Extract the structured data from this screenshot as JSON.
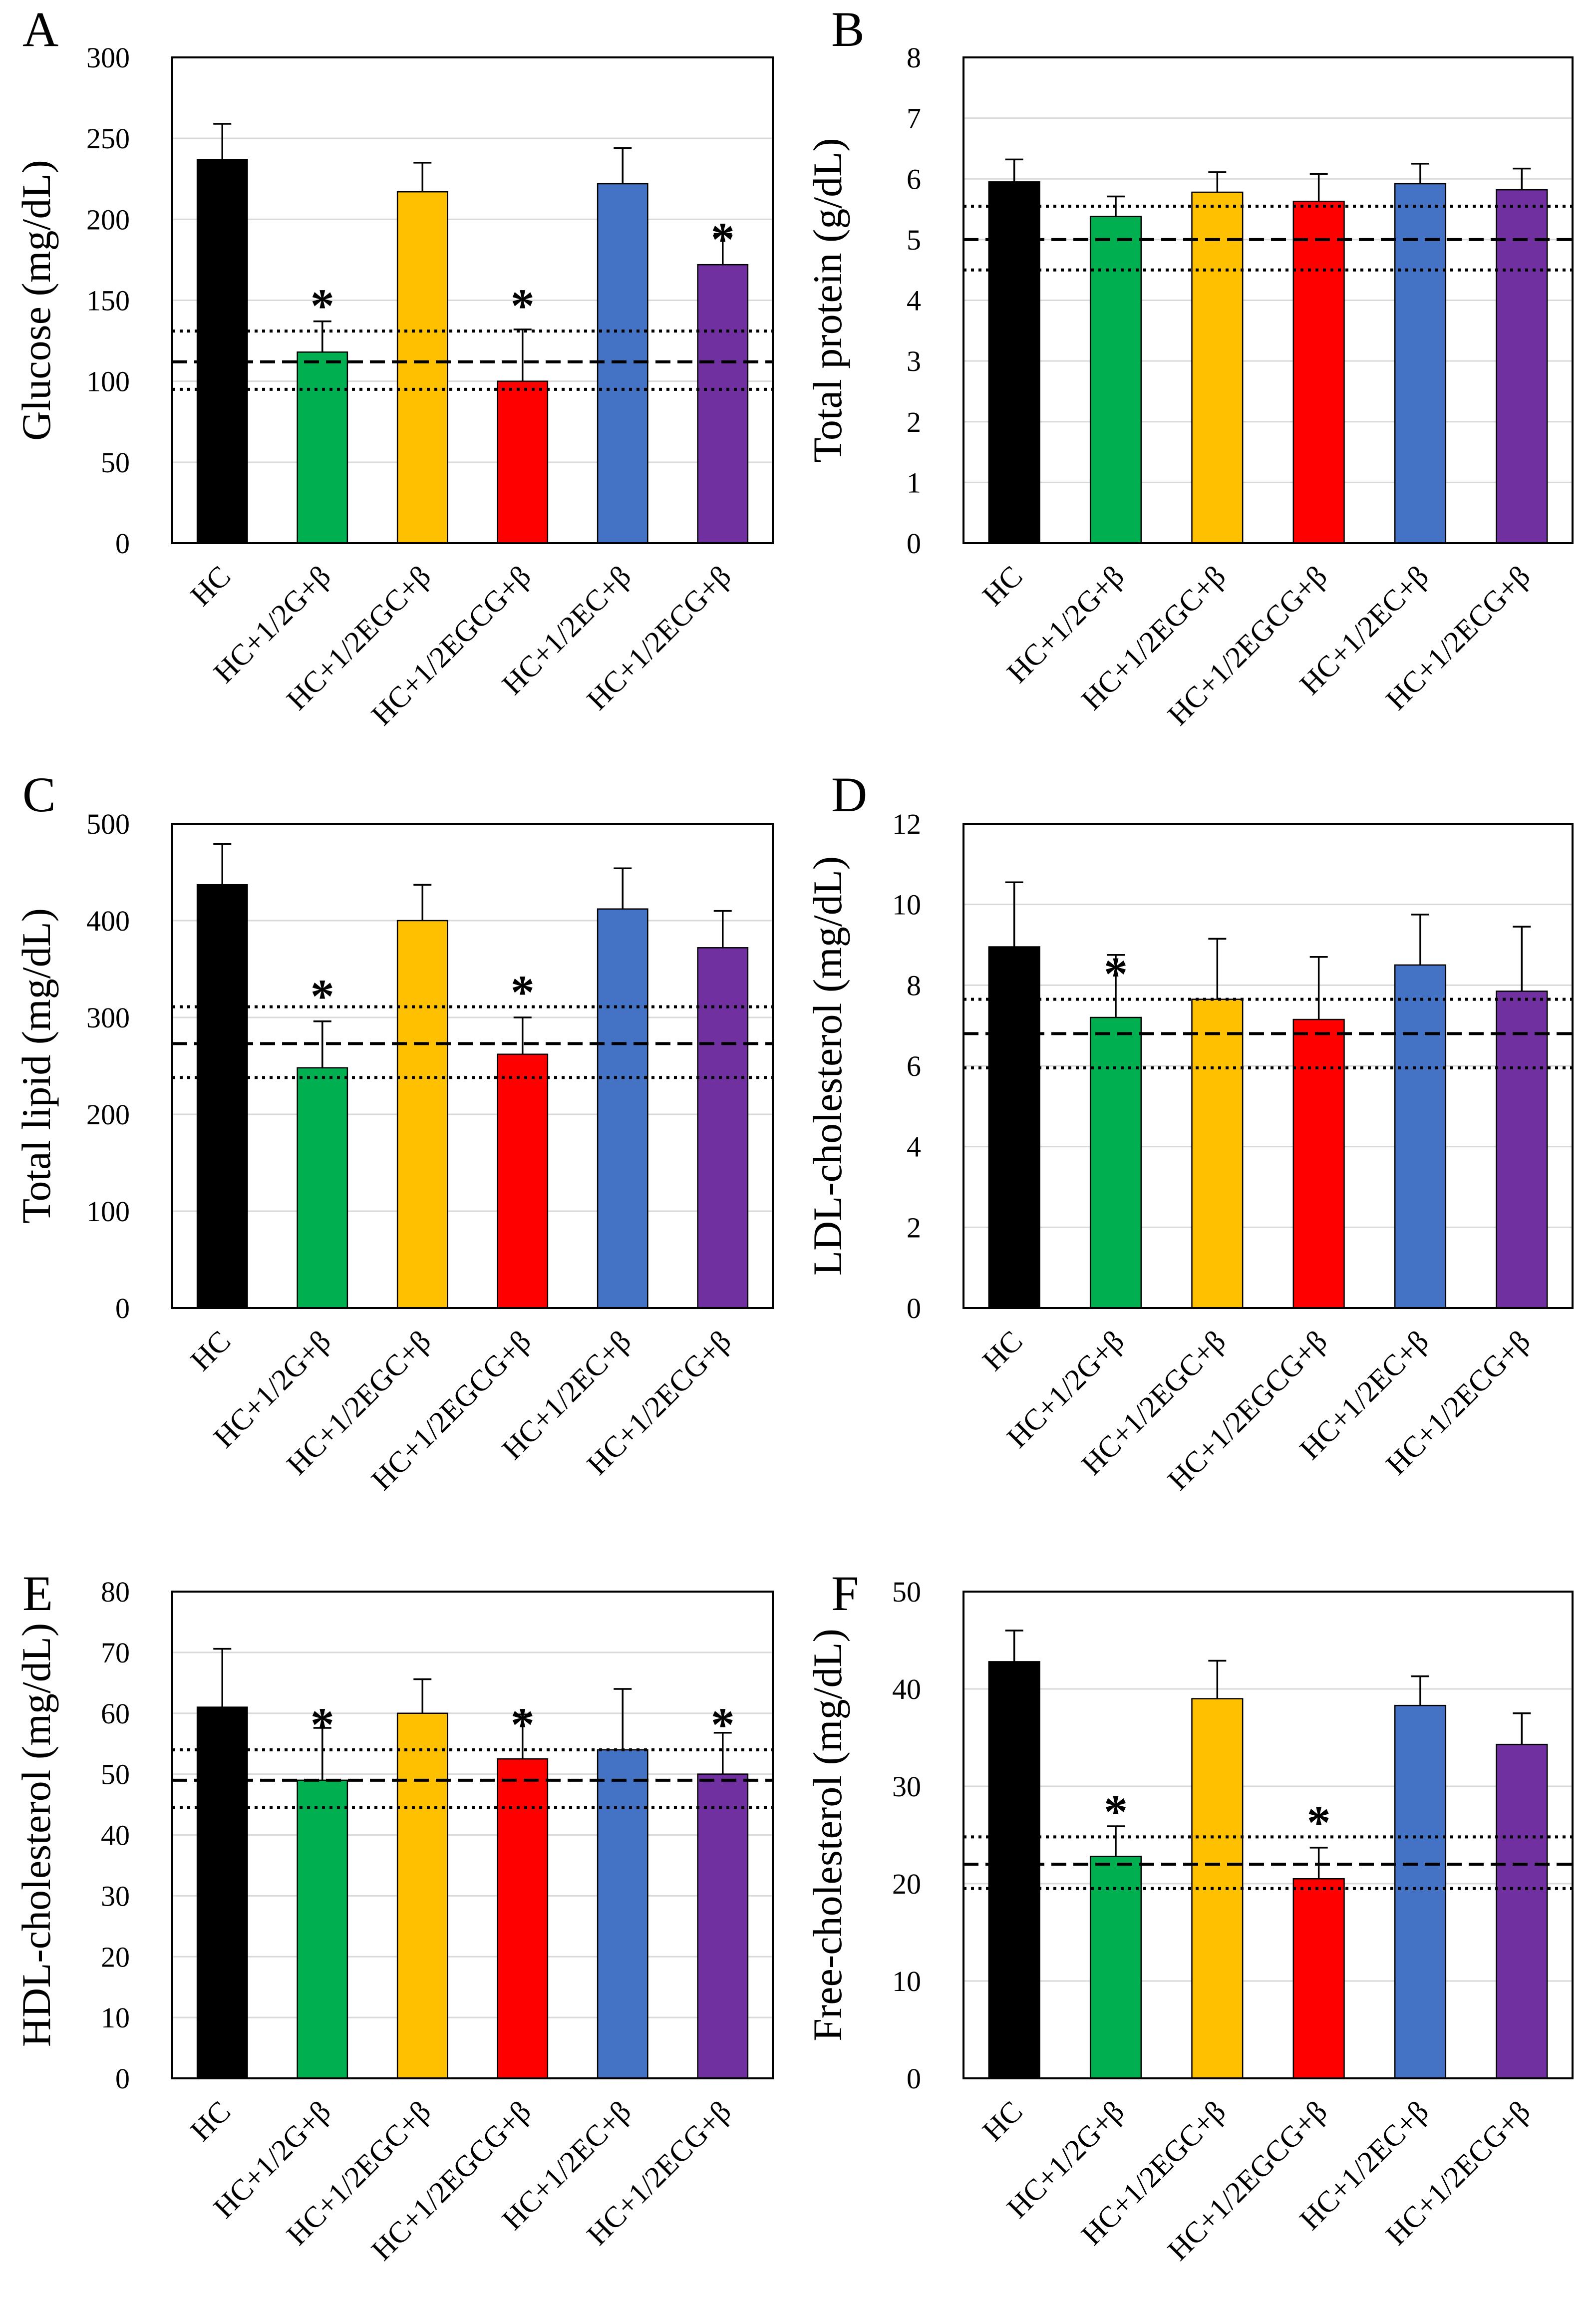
{
  "figure": {
    "categories": [
      "HC",
      "HC+1/2G+β",
      "HC+1/2EGC+β",
      "HC+1/2EGCG+β",
      "HC+1/2EC+β",
      "HC+1/2ECG+β"
    ],
    "bar_colors": [
      "#000000",
      "#00B050",
      "#FFC000",
      "#FF0000",
      "#4472C4",
      "#7030A0"
    ],
    "significance_marker": "*"
  },
  "chart_data": [
    {
      "panel": "A",
      "type": "bar",
      "ylabel": "Glucose (mg/dL)",
      "ylim": [
        0,
        300
      ],
      "yticks": [
        0,
        50,
        100,
        150,
        200,
        250,
        300
      ],
      "values": [
        237,
        118,
        217,
        100,
        222,
        172
      ],
      "errors": [
        22,
        19,
        18,
        32,
        22,
        19
      ],
      "significant": [
        false,
        true,
        false,
        true,
        false,
        true
      ],
      "reference": {
        "mean": 112,
        "lower": 95,
        "upper": 131
      }
    },
    {
      "panel": "B",
      "type": "bar",
      "ylabel": "Total protein (g/dL)",
      "ylim": [
        0,
        8
      ],
      "yticks": [
        0,
        1,
        2,
        3,
        4,
        5,
        6,
        7,
        8
      ],
      "values": [
        5.95,
        5.38,
        5.78,
        5.63,
        5.92,
        5.82
      ],
      "errors": [
        0.37,
        0.33,
        0.33,
        0.45,
        0.33,
        0.35
      ],
      "significant": [
        false,
        false,
        false,
        false,
        false,
        false
      ],
      "reference": {
        "mean": 5.0,
        "lower": 4.5,
        "upper": 5.55
      }
    },
    {
      "panel": "C",
      "type": "bar",
      "ylabel": "Total lipid (mg/dL)",
      "ylim": [
        0,
        500
      ],
      "yticks": [
        0,
        100,
        200,
        300,
        400,
        500
      ],
      "values": [
        437,
        248,
        400,
        262,
        412,
        372
      ],
      "errors": [
        42,
        48,
        37,
        38,
        42,
        38
      ],
      "significant": [
        false,
        true,
        false,
        true,
        false,
        false
      ],
      "reference": {
        "mean": 273,
        "lower": 238,
        "upper": 311
      }
    },
    {
      "panel": "D",
      "type": "bar",
      "ylabel": "LDL-cholesterol (mg/dL)",
      "ylim": [
        0,
        12
      ],
      "yticks": [
        0,
        2,
        4,
        6,
        8,
        10,
        12
      ],
      "values": [
        8.95,
        7.2,
        7.65,
        7.15,
        8.5,
        7.85
      ],
      "errors": [
        1.6,
        1.55,
        1.5,
        1.55,
        1.25,
        1.6
      ],
      "significant": [
        false,
        true,
        false,
        false,
        false,
        false
      ],
      "reference": {
        "mean": 6.8,
        "lower": 5.95,
        "upper": 7.65
      }
    },
    {
      "panel": "E",
      "type": "bar",
      "ylabel": "HDL-cholesterol (mg/dL)",
      "ylim": [
        0,
        80
      ],
      "yticks": [
        0,
        10,
        20,
        30,
        40,
        50,
        60,
        70,
        80
      ],
      "values": [
        61,
        49,
        60,
        52.5,
        54,
        50
      ],
      "errors": [
        9.6,
        8.6,
        5.6,
        7.3,
        10,
        6.8
      ],
      "significant": [
        false,
        true,
        false,
        true,
        false,
        true
      ],
      "reference": {
        "mean": 49,
        "lower": 44.5,
        "upper": 54
      }
    },
    {
      "panel": "F",
      "type": "bar",
      "ylabel": "Free-cholesterol (mg/dL)",
      "ylim": [
        0,
        50
      ],
      "yticks": [
        0,
        10,
        20,
        30,
        40,
        50
      ],
      "values": [
        42.8,
        22.8,
        39,
        20.5,
        38.3,
        34.3
      ],
      "errors": [
        3.2,
        3.1,
        3.9,
        3.2,
        3,
        3.2
      ],
      "significant": [
        false,
        true,
        false,
        true,
        false,
        false
      ],
      "reference": {
        "mean": 22,
        "lower": 19.5,
        "upper": 24.8
      }
    }
  ]
}
